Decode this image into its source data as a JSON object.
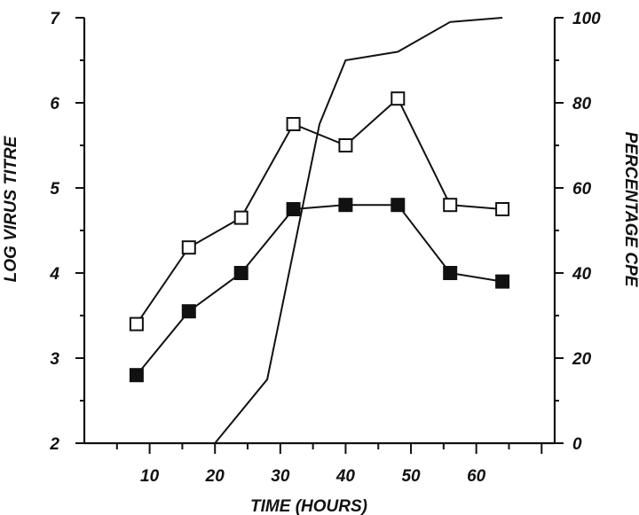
{
  "chart_data": {
    "type": "line",
    "xlabel": "TIME (HOURS)",
    "ylabel": "LOG VIRUS TITRE",
    "y2label": "PERCENTAGE CPE",
    "xlim": [
      0,
      72
    ],
    "ylim": [
      2,
      7
    ],
    "y2lim": [
      0,
      100
    ],
    "xticks": [
      10,
      20,
      30,
      40,
      50,
      60
    ],
    "yticks": [
      2,
      3,
      4,
      5,
      6,
      7
    ],
    "y2ticks": [
      0,
      20,
      40,
      60,
      80,
      100
    ],
    "grid": false,
    "series": [
      {
        "axis": "left",
        "marker": "open-square",
        "x": [
          8,
          16,
          24,
          32,
          40,
          48,
          56,
          64
        ],
        "y": [
          3.4,
          4.3,
          4.65,
          5.75,
          5.5,
          6.05,
          4.8,
          4.75
        ]
      },
      {
        "axis": "left",
        "marker": "filled-square",
        "x": [
          8,
          16,
          24,
          32,
          40,
          48,
          56,
          64
        ],
        "y": [
          2.8,
          3.55,
          4.0,
          4.75,
          4.8,
          4.8,
          4.0,
          3.9
        ]
      },
      {
        "axis": "right",
        "marker": "none",
        "x": [
          20,
          28,
          36,
          40,
          48,
          56,
          64
        ],
        "y": [
          0,
          15,
          75,
          90,
          92,
          99,
          100
        ]
      }
    ]
  }
}
